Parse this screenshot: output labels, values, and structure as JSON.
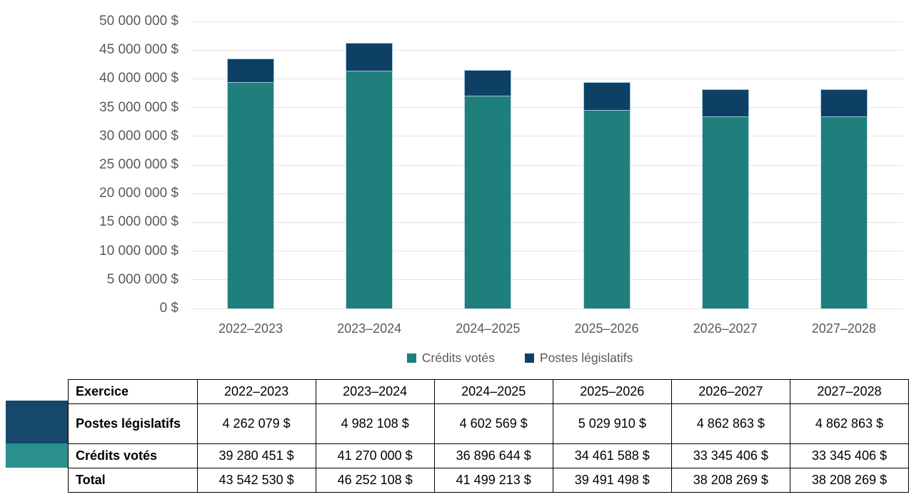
{
  "chart_data": {
    "type": "bar",
    "stacked": true,
    "categories": [
      "2022–2023",
      "2023–2024",
      "2024–2025",
      "2025–2026",
      "2026–2027",
      "2027–2028"
    ],
    "series": [
      {
        "name": "Crédits votés",
        "color": "#1f7f7c",
        "values": [
          39280451,
          41270000,
          36896644,
          34461588,
          33345406,
          33345406
        ]
      },
      {
        "name": "Postes législatifs",
        "color": "#0e4066",
        "values": [
          4262079,
          4982108,
          4602569,
          5029910,
          4862863,
          4862863
        ]
      }
    ],
    "totals": [
      43542530,
      46252108,
      41499213,
      39491498,
      38208269,
      38208269
    ],
    "ylim": [
      0,
      50000000
    ],
    "ytick_step": 5000000,
    "ytick_labels": [
      "0 $",
      "5 000 000 $",
      "10 000 000 $",
      "15 000 000 $",
      "20 000 000 $",
      "25 000 000 $",
      "30 000 000 $",
      "35 000 000 $",
      "40 000 000 $",
      "45 000 000 $",
      "50 000 000 $"
    ],
    "grid": true,
    "legend_position": "bottom",
    "title": "",
    "xlabel": "",
    "ylabel": ""
  },
  "legend": {
    "items": [
      {
        "label": "Crédits votés",
        "color": "#1f7f7c"
      },
      {
        "label": "Postes législatifs",
        "color": "#0e4066"
      }
    ]
  },
  "table": {
    "header": {
      "label": "Exercice",
      "values": [
        "2022–2023",
        "2023–2024",
        "2024–2025",
        "2025–2026",
        "2026–2027",
        "2027–2028"
      ]
    },
    "rows": [
      {
        "id": "postes-legislatifs",
        "label": "Postes législatifs",
        "swatch": "#15486b",
        "values": [
          "4 262 079 $",
          "4 982 108 $",
          "4 602 569 $",
          "5 029 910 $",
          "4 862 863 $",
          "4 862 863 $"
        ]
      },
      {
        "id": "credits-votes",
        "label": "Crédits votés",
        "swatch": "#2a918d",
        "values": [
          "39 280 451 $",
          "41 270 000 $",
          "36 896 644 $",
          "34 461 588 $",
          "33 345 406 $",
          "33 345 406 $"
        ]
      },
      {
        "id": "total",
        "label": "Total",
        "swatch": null,
        "values": [
          "43 542 530 $",
          "46 252 108 $",
          "41 499 213 $",
          "39 491 498 $",
          "38 208 269 $",
          "38 208 269 $"
        ]
      }
    ]
  },
  "colors": {
    "axis_text": "#595959",
    "gridline": "#e3e3e3",
    "table_border": "#000000",
    "segment_outline": "#9fc6d9"
  }
}
